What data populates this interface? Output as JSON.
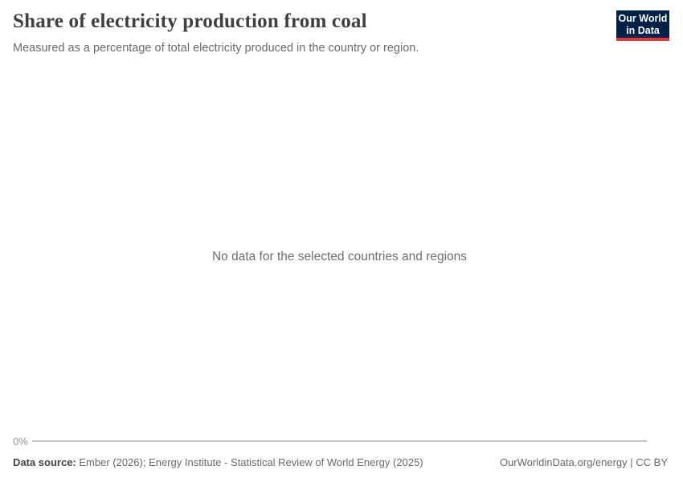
{
  "header": {
    "title": "Share of electricity production from coal",
    "subtitle": "Measured as a percentage of total electricity produced in the country or region.",
    "logo": {
      "line1": "Our World",
      "line2": "in Data"
    }
  },
  "plot": {
    "no_data_message": "No data for the selected countries and regions",
    "axis": {
      "tick_label": "0%"
    }
  },
  "footer": {
    "source_label": "Data source:",
    "source_text": " Ember (2026); Energy Institute - Statistical Review of World Energy (2025)",
    "license_text": "OurWorldinData.org/energy | CC BY"
  },
  "colors": {
    "title_text": "#3d3f42",
    "subtitle_text": "#6b6b6b",
    "logo_navy": "#002147",
    "logo_red": "#dc3a3a",
    "no_data_text": "#6e6e6e",
    "axis_tick": "#949494",
    "axis_line": "#c6c6c6",
    "footer_text": "#6a6a6a"
  },
  "chart_data": {
    "type": "line",
    "title": "Share of electricity production from coal",
    "subtitle": "Measured as a percentage of total electricity produced in the country or region.",
    "series": [],
    "categories": [],
    "annotations": [
      "No data for the selected countries and regions"
    ],
    "xlabel": "",
    "ylabel": "",
    "ytick_labels": [
      "0%"
    ],
    "ylim": [
      0,
      null
    ],
    "grid": false,
    "legend_position": "none"
  }
}
